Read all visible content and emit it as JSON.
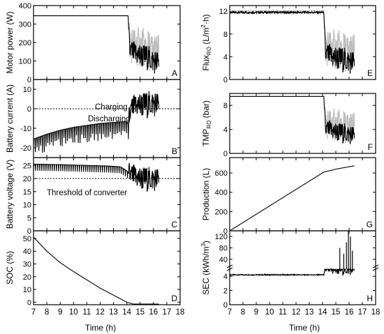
{
  "figure": {
    "x_axis_label": "Time (h)",
    "x_ticks": [
      "7",
      "8",
      "9",
      "10",
      "11",
      "12",
      "13",
      "14",
      "15",
      "16",
      "17",
      "18"
    ]
  },
  "chart_data": [
    {
      "id": "A",
      "type": "line",
      "panel_label": "A",
      "ylabel": "Motor power (W)",
      "ylim": [
        0,
        400
      ],
      "yticks": [
        0,
        100,
        200,
        300,
        400
      ],
      "ytick_labels": [
        "0",
        "100",
        "200",
        "300",
        "400"
      ],
      "xlim": [
        7,
        18
      ],
      "series": [
        {
          "values": [
            [
              7,
              345
            ],
            [
              14.1,
              345
            ],
            [
              14.2,
              160
            ],
            [
              14.5,
              140
            ],
            [
              15,
              130
            ],
            [
              15.5,
              120
            ],
            [
              16,
              100
            ],
            [
              16.4,
              90
            ]
          ]
        }
      ],
      "annotations": []
    },
    {
      "id": "B",
      "type": "line",
      "panel_label": "B",
      "ylabel": "Battery current (A)",
      "ylim": [
        -25,
        15
      ],
      "yticks": [
        -20,
        -10,
        0,
        10
      ],
      "ytick_labels": [
        "-20",
        "-10",
        "0",
        "10"
      ],
      "xlim": [
        7,
        18
      ],
      "series": [
        {
          "values": [
            [
              7,
              -15.5
            ],
            [
              8,
              -13
            ],
            [
              9,
              -11
            ],
            [
              10,
              -9.5
            ],
            [
              11,
              -8.5
            ],
            [
              12,
              -7.5
            ],
            [
              13,
              -7
            ],
            [
              14,
              -6.5
            ],
            [
              14.1,
              -8
            ],
            [
              14.3,
              -1
            ],
            [
              14.8,
              2
            ],
            [
              15.5,
              2
            ],
            [
              16,
              3
            ],
            [
              16.4,
              2
            ]
          ]
        }
      ],
      "reference_lines": [
        {
          "y": 0
        }
      ],
      "annotations": [
        "Charging",
        "Discharging"
      ]
    },
    {
      "id": "C",
      "type": "line",
      "panel_label": "C",
      "ylabel": "Battery voltage (V)",
      "ylim": [
        0,
        28
      ],
      "yticks": [
        0,
        5,
        10,
        15,
        20,
        25
      ],
      "ytick_labels": [
        "0",
        "5",
        "10",
        "15",
        "20",
        "25"
      ],
      "xlim": [
        7,
        18
      ],
      "series": [
        {
          "values": [
            [
              7,
              25.5
            ],
            [
              9,
              25.3
            ],
            [
              11,
              25
            ],
            [
              12.5,
              24.8
            ],
            [
              13.5,
              24.5
            ],
            [
              14,
              23
            ],
            [
              14.3,
              21
            ],
            [
              15,
              20
            ],
            [
              15.5,
              19.8
            ],
            [
              16.4,
              19.8
            ]
          ]
        }
      ],
      "reference_lines": [
        {
          "y": 20
        }
      ],
      "annotations": [
        "Threshold of converter"
      ]
    },
    {
      "id": "D",
      "type": "line",
      "panel_label": "D",
      "ylabel": "SOC (%)",
      "ylim": [
        -2,
        56
      ],
      "yticks": [
        0,
        10,
        20,
        30,
        40,
        50
      ],
      "ytick_labels": [
        "0",
        "10",
        "20",
        "30",
        "40",
        "50"
      ],
      "xlim": [
        7,
        18
      ],
      "series": [
        {
          "values": [
            [
              7,
              51
            ],
            [
              8,
              40
            ],
            [
              9,
              31
            ],
            [
              10,
              24
            ],
            [
              11,
              17.5
            ],
            [
              12,
              11
            ],
            [
              13,
              5.5
            ],
            [
              14,
              0
            ],
            [
              14.5,
              -1.5
            ],
            [
              16.4,
              -1.5
            ]
          ]
        }
      ],
      "annotations": []
    },
    {
      "id": "E",
      "type": "line",
      "panel_label": "E",
      "ylabel": "Flux",
      "ylabel_sub": "RO",
      "ylabel_unit": " (L/m",
      "ylabel_sup": "2",
      "ylabel_end": "·h)",
      "ylim": [
        0,
        13
      ],
      "yticks": [
        0,
        4,
        8,
        12
      ],
      "ytick_labels": [
        "0",
        "4",
        "8",
        "12"
      ],
      "xlim": [
        7,
        18
      ],
      "series": [
        {
          "values": [
            [
              7,
              11.8
            ],
            [
              14.1,
              11.8
            ],
            [
              14.2,
              4.5
            ],
            [
              14.6,
              4
            ],
            [
              15,
              3.8
            ],
            [
              15.5,
              3.5
            ],
            [
              16,
              3.2
            ],
            [
              16.4,
              3
            ]
          ]
        }
      ],
      "annotations": []
    },
    {
      "id": "F",
      "type": "line",
      "panel_label": "F",
      "ylabel": "TMP",
      "ylabel_sub": "RO",
      "ylabel_unit": " (bar)",
      "ylabel_sup": "",
      "ylabel_end": "",
      "ylim": [
        0,
        10
      ],
      "yticks": [
        0,
        4,
        8
      ],
      "ytick_labels": [
        "0",
        "4",
        "8"
      ],
      "xlim": [
        7,
        18
      ],
      "series": [
        {
          "values": [
            [
              7,
              9.5
            ],
            [
              14.1,
              9.5
            ],
            [
              14.2,
              4
            ],
            [
              14.6,
              3.8
            ],
            [
              15,
              3.6
            ],
            [
              15.5,
              3.4
            ],
            [
              16,
              3.2
            ],
            [
              16.4,
              3
            ]
          ]
        }
      ],
      "annotations": []
    },
    {
      "id": "G",
      "type": "line",
      "panel_label": "G",
      "ylabel": "Production (L)",
      "ylim": [
        0,
        760
      ],
      "yticks": [
        0,
        200,
        400,
        600
      ],
      "ytick_labels": [
        "0",
        "200",
        "400",
        "600"
      ],
      "xlim": [
        7,
        18
      ],
      "series": [
        {
          "values": [
            [
              7,
              0
            ],
            [
              14.1,
              610
            ],
            [
              15,
              640
            ],
            [
              16,
              665
            ],
            [
              16.4,
              675
            ]
          ]
        }
      ],
      "annotations": []
    },
    {
      "id": "H",
      "type": "line",
      "panel_label": "H",
      "ylabel": "SEC",
      "ylabel_sub": "",
      "ylabel_unit": " (kWh/m",
      "ylabel_sup": "3",
      "ylabel_end": ")",
      "axis_break": true,
      "ylim_lower": [
        0,
        5
      ],
      "ylim_upper": [
        20,
        140
      ],
      "yticks_lower": [
        0,
        2,
        4
      ],
      "yticks_upper": [
        40,
        80,
        120
      ],
      "ytick_labels_lower": [
        "0",
        "2",
        "4"
      ],
      "ytick_labels_upper": [
        "40",
        "80",
        "120"
      ],
      "xlim": [
        7,
        18
      ],
      "series": [
        {
          "values": [
            [
              7,
              4.2
            ],
            [
              14.1,
              4.2
            ],
            [
              14.2,
              5
            ],
            [
              16.4,
              5
            ]
          ]
        }
      ],
      "spikes": [
        [
          15.3,
          80
        ],
        [
          15.6,
          60
        ],
        [
          15.8,
          100
        ],
        [
          15.95,
          145
        ],
        [
          16.1,
          120
        ],
        [
          16.25,
          70
        ]
      ],
      "annotations": []
    }
  ]
}
